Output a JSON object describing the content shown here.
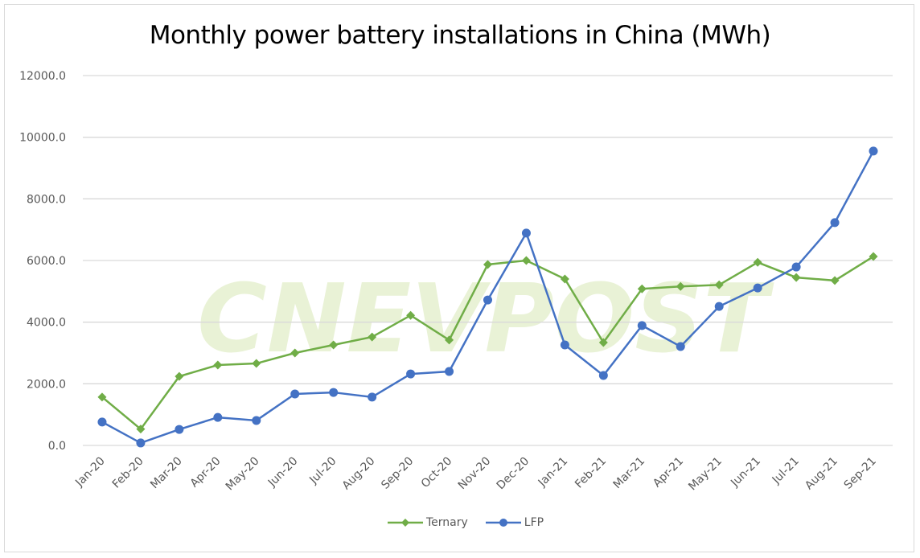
{
  "chart_data": {
    "type": "line",
    "title": "Monthly power battery installations in China (MWh)",
    "categories": [
      "Jan-20",
      "Feb-20",
      "Mar-20",
      "Apr-20",
      "May-20",
      "Jun-20",
      "Jul-20",
      "Aug-20",
      "Sep-20",
      "Oct-20",
      "Nov-20",
      "Dec-20",
      "Jan-21",
      "Feb-21",
      "Mar-21",
      "Apr-21",
      "May-21",
      "Jun-21",
      "Jul-21",
      "Aug-21",
      "Sep-21"
    ],
    "series": [
      {
        "name": "Ternary",
        "color": "#70ad47",
        "marker": "diamond",
        "values": [
          1570,
          530,
          2240,
          2610,
          2660,
          3000,
          3260,
          3520,
          4220,
          3420,
          5870,
          6000,
          5400,
          3340,
          5080,
          5160,
          5210,
          5940,
          5450,
          5350,
          6130
        ]
      },
      {
        "name": "LFP",
        "color": "#4472c4",
        "marker": "circle",
        "values": [
          760,
          80,
          520,
          910,
          810,
          1670,
          1720,
          1570,
          2320,
          2400,
          4720,
          6890,
          3260,
          2270,
          3890,
          3210,
          4510,
          5110,
          5790,
          7230,
          9550
        ]
      }
    ],
    "ylim": [
      0,
      12000
    ],
    "yticks": [
      "0.0",
      "2000.0",
      "4000.0",
      "6000.0",
      "8000.0",
      "10000.0",
      "12000.0"
    ],
    "grid": true,
    "legend": "bottom",
    "xlabel": "",
    "ylabel": ""
  },
  "watermark": "CNEVPOST"
}
